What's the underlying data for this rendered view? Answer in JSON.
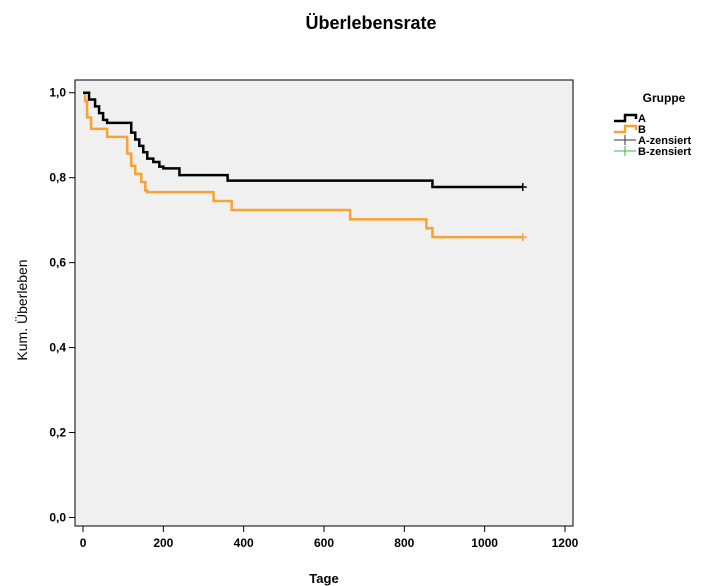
{
  "chart_data": {
    "type": "line",
    "title": "Überlebensrate",
    "xlabel": "Tage",
    "ylabel": "Kum. Überleben",
    "xlim": [
      -20,
      1220
    ],
    "ylim": [
      -0.02,
      1.03
    ],
    "xticks": [
      0,
      200,
      400,
      600,
      800,
      1000,
      1200
    ],
    "xtick_labels": [
      "0",
      "200",
      "400",
      "600",
      "800",
      "1000",
      "1200"
    ],
    "yticks": [
      0.0,
      0.2,
      0.4,
      0.6,
      0.8,
      1.0
    ],
    "ytick_labels": [
      "0,0",
      "0,2",
      "0,4",
      "0,6",
      "0,8",
      "1,0"
    ],
    "grid": false,
    "step": true,
    "legend_placement": "right",
    "legend_title": "Gruppe",
    "colors": {
      "plot_background": "#f0f0f0",
      "A": "#000000",
      "B": "#f7a233",
      "A_censored": "#333333",
      "B_censored": "#3cb44b"
    },
    "legend_entries": [
      {
        "label": "A",
        "color": "#000000",
        "kind": "step"
      },
      {
        "label": "B",
        "color": "#f7a233",
        "kind": "step"
      },
      {
        "label": "A-zensiert",
        "color": "#333333",
        "kind": "cross"
      },
      {
        "label": "B-zensiert",
        "color": "#3cb44b",
        "kind": "cross"
      }
    ],
    "series": [
      {
        "name": "A",
        "color": "#000000",
        "x": [
          0,
          15,
          30,
          40,
          50,
          60,
          120,
          130,
          140,
          150,
          160,
          175,
          190,
          200,
          240,
          360,
          870,
          950,
          1095
        ],
        "y": [
          1.0,
          0.984,
          0.968,
          0.952,
          0.936,
          0.929,
          0.906,
          0.89,
          0.875,
          0.86,
          0.845,
          0.837,
          0.826,
          0.822,
          0.806,
          0.793,
          0.778,
          0.778,
          0.778
        ],
        "censored": [
          {
            "x": 1095,
            "y": 0.778
          }
        ]
      },
      {
        "name": "B",
        "color": "#f7a233",
        "x": [
          0,
          5,
          10,
          20,
          60,
          110,
          120,
          130,
          145,
          155,
          160,
          325,
          370,
          665,
          855,
          870,
          1095
        ],
        "y": [
          1.0,
          0.98,
          0.942,
          0.915,
          0.896,
          0.857,
          0.828,
          0.809,
          0.79,
          0.77,
          0.766,
          0.745,
          0.724,
          0.702,
          0.681,
          0.66,
          0.66
        ],
        "censored": [
          {
            "x": 1095,
            "y": 0.66
          }
        ]
      }
    ]
  }
}
